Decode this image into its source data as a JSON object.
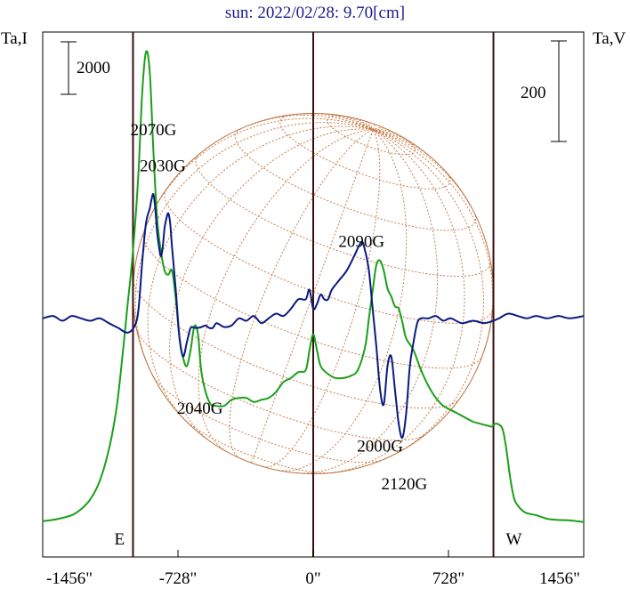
{
  "title": "sun: 2022/02/28: 9.70[cm]",
  "chart_data": {
    "type": "line",
    "title": "sun: 2022/02/28: 9.70[cm]",
    "left_axis_label": "Ta,I",
    "right_axis_label": "Ta,V",
    "left_scale_bar_label": "2000",
    "right_scale_bar_label": "200",
    "x_ticks": [
      {
        "value": -1456,
        "label": "-1456\""
      },
      {
        "value": -728,
        "label": "-728\""
      },
      {
        "value": 0,
        "label": "0\""
      },
      {
        "value": 728,
        "label": "728\""
      },
      {
        "value": 1456,
        "label": "1456\""
      }
    ],
    "xlim": [
      -1456,
      1456
    ],
    "limb_markers": [
      {
        "x": -970,
        "label": "E"
      },
      {
        "x": 0,
        "label": ""
      },
      {
        "x": 970,
        "label": "W"
      }
    ],
    "solar_disk_radius_arcsec": 970,
    "annotations": [
      {
        "label": "2070G",
        "x": -860,
        "y": 9900
      },
      {
        "label": "2030G",
        "x": -810,
        "y": 9000
      },
      {
        "label": "2040G",
        "x": -610,
        "y": 2900
      },
      {
        "label": "2090G",
        "x": 260,
        "y": 7100
      },
      {
        "label": "2000G",
        "x": 360,
        "y": 1950
      },
      {
        "label": "2120G",
        "x": 490,
        "y": 1000
      }
    ],
    "series": [
      {
        "name": "Ta,I",
        "color": "#19a019",
        "axis": "left",
        "ylim": [
          -700,
          12500
        ],
        "x": [
          -1456,
          -1380,
          -1300,
          -1250,
          -1200,
          -1150,
          -1100,
          -1060,
          -1030,
          -1000,
          -980,
          -960,
          -940,
          -920,
          -900,
          -880,
          -860,
          -840,
          -820,
          -800,
          -780,
          -760,
          -740,
          -720,
          -700,
          -680,
          -660,
          -640,
          -620,
          -600,
          -560,
          -520,
          -480,
          -440,
          -400,
          -360,
          -320,
          -280,
          -240,
          -200,
          -160,
          -120,
          -80,
          -40,
          -20,
          0,
          20,
          40,
          80,
          120,
          160,
          200,
          240,
          280,
          300,
          320,
          340,
          360,
          380,
          400,
          420,
          440,
          460,
          480,
          500,
          540,
          580,
          620,
          660,
          700,
          760,
          820,
          860,
          900,
          940,
          960,
          980,
          1000,
          1020,
          1040,
          1060,
          1080,
          1100,
          1140,
          1200,
          1260,
          1320,
          1380,
          1456
        ],
        "y": [
          200,
          250,
          350,
          500,
          750,
          1200,
          2000,
          3000,
          4200,
          5600,
          6500,
          7600,
          9000,
          11000,
          12000,
          11500,
          9500,
          7800,
          7000,
          6500,
          6400,
          6500,
          5800,
          4800,
          4300,
          4100,
          4500,
          5100,
          4900,
          3900,
          3200,
          3100,
          3100,
          3250,
          3300,
          3300,
          3200,
          3250,
          3300,
          3450,
          3700,
          3800,
          3950,
          4000,
          4500,
          4900,
          4500,
          4100,
          3900,
          3800,
          3800,
          3850,
          4000,
          4600,
          5300,
          6000,
          6650,
          6750,
          6500,
          6050,
          5850,
          5600,
          5550,
          5200,
          4800,
          4500,
          4000,
          3600,
          3300,
          3100,
          2950,
          2800,
          2700,
          2650,
          2600,
          2580,
          2650,
          2630,
          2500,
          2000,
          1300,
          800,
          600,
          420,
          350,
          260,
          230,
          220,
          180
        ]
      },
      {
        "name": "Ta,V",
        "color": "#0a1a80",
        "axis": "right",
        "ylim": [
          -500,
          600
        ],
        "x": [
          -1456,
          -1400,
          -1350,
          -1300,
          -1250,
          -1200,
          -1150,
          -1100,
          -1050,
          -1000,
          -960,
          -940,
          -920,
          -900,
          -880,
          -870,
          -860,
          -850,
          -840,
          -830,
          -820,
          -810,
          -800,
          -790,
          -780,
          -770,
          -760,
          -740,
          -720,
          -700,
          -680,
          -660,
          -640,
          -620,
          -600,
          -580,
          -560,
          -540,
          -520,
          -480,
          -440,
          -400,
          -360,
          -320,
          -280,
          -240,
          -200,
          -160,
          -120,
          -80,
          -40,
          -20,
          0,
          20,
          40,
          60,
          80,
          100,
          140,
          180,
          220,
          260,
          280,
          300,
          320,
          340,
          360,
          380,
          400,
          420,
          440,
          460,
          480,
          500,
          520,
          540,
          560,
          580,
          620,
          660,
          700,
          740,
          800,
          860,
          920,
          970,
          1000,
          1050,
          1100,
          1150,
          1200,
          1260,
          1320,
          1380,
          1456
        ],
        "y": [
          0,
          5,
          -5,
          5,
          0,
          -5,
          0,
          -10,
          -20,
          -30,
          -15,
          20,
          120,
          200,
          230,
          250,
          260,
          230,
          180,
          150,
          130,
          150,
          190,
          210,
          220,
          200,
          150,
          60,
          -40,
          -80,
          -50,
          -20,
          -20,
          -20,
          -18,
          -15,
          -20,
          -20,
          -10,
          -18,
          -15,
          0,
          -5,
          5,
          -10,
          0,
          10,
          5,
          20,
          40,
          40,
          60,
          20,
          30,
          50,
          40,
          40,
          60,
          80,
          100,
          130,
          160,
          140,
          100,
          20,
          -60,
          -150,
          -180,
          -100,
          -80,
          -150,
          -220,
          -250,
          -200,
          -100,
          -50,
          -10,
          0,
          0,
          5,
          -5,
          0,
          -10,
          -5,
          -10,
          -5,
          0,
          10,
          5,
          0,
          5,
          0,
          5,
          0,
          5
        ]
      }
    ]
  }
}
